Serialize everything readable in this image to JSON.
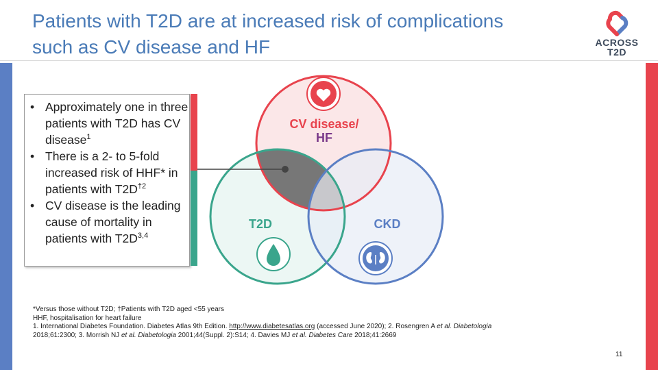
{
  "slide": {
    "title_line1": "Patients with T2D are at increased risk of complications",
    "title_line2": "such as CV disease and HF",
    "page_number": "11",
    "accent_colors": {
      "title_blue": "#4a7bb7",
      "red": "#e8434d",
      "teal": "#3aa58c",
      "blue": "#5b7fc4",
      "overlap_gray": "#777777"
    }
  },
  "logo": {
    "line1": "ACROSS",
    "line2": "T2D",
    "icon": "heart-knot-icon"
  },
  "bullets": {
    "b1_text": "Approximately one in three patients with T2D has CV disease",
    "b1_sup": "1",
    "b2_text": "There is a 2- to 5-fold increased risk of HHF* in patients with T2D",
    "b2_sup": "†2",
    "b3_text": "CV disease is the leading cause of mortality in patients with T2D",
    "b3_sup": "3,4"
  },
  "venn": {
    "cv_label_line1": "CV disease/",
    "cv_label_line2": "HF",
    "t2d_label": "T2D",
    "ckd_label": "CKD",
    "cv_icon": "heart-icon",
    "t2d_icon": "drop-icon",
    "ckd_icon": "kidney-icon"
  },
  "footnotes": {
    "line1": "*Versus those without T2D; †Patients with T2D aged <55 years",
    "line2": "HHF, hospitalisation for heart failure",
    "line3_a": "1. International Diabetes Foundation. Diabetes Atlas 9th Edition. ",
    "line3_link": "http://www.diabetesatlas.org",
    "line3_b": " (accessed June 2020); 2. Rosengren A ",
    "line3_etal": "et al. Diabetologia",
    "line4_a": "2018;61:2300; 3. Morrish NJ ",
    "line4_etal1": "et al. Diabetologia",
    "line4_b": " 2001;44(Suppl. 2):S14; 4. Davies MJ ",
    "line4_etal2": "et al. Diabetes Care",
    "line4_c": " 2018;41:2669"
  }
}
